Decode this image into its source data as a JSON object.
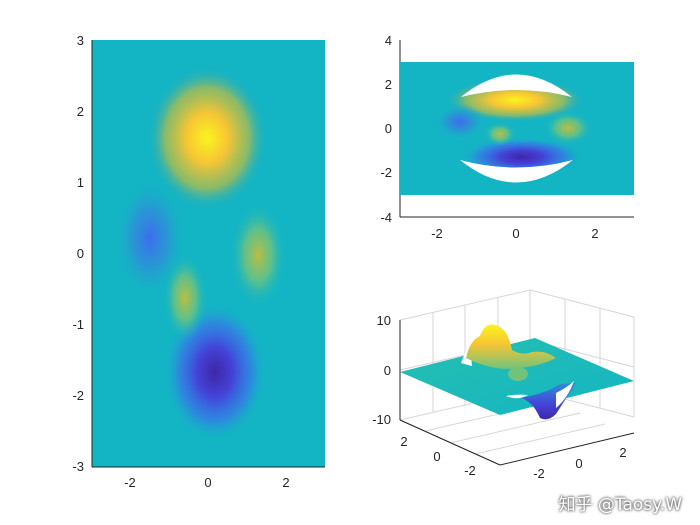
{
  "figure": {
    "watermark": "知乎 @Taosy.W"
  },
  "colormap": [
    "#3e26a8",
    "#4443d8",
    "#3e6cf0",
    "#2f8ed8",
    "#1ca5c8",
    "#13b5c4",
    "#26bfaf",
    "#71c37c",
    "#bcbd42",
    "#f6c534",
    "#faf41d"
  ],
  "chart_data": [
    {
      "type": "heatmap",
      "view": "2D top view (surface)",
      "title": "",
      "xlabel": "",
      "ylabel": "",
      "xlim": [
        -3,
        3
      ],
      "ylim": [
        -3,
        3
      ],
      "xticks": [
        "-2",
        "0",
        "2"
      ],
      "yticks": [
        "3",
        "2",
        "1",
        "0",
        "-1",
        "-2",
        "-3"
      ],
      "value_range": [
        -8,
        8
      ],
      "features": [
        {
          "label": "peak",
          "x": 0.0,
          "y": 1.6,
          "value": 8.1
        },
        {
          "label": "trough",
          "x": 0.2,
          "y": -1.6,
          "value": -6.5
        },
        {
          "label": "trough",
          "x": -1.4,
          "y": 0.2,
          "value": -3.0
        },
        {
          "label": "peak",
          "x": 1.3,
          "y": 0.0,
          "value": 3.6
        },
        {
          "label": "peak",
          "x": -0.4,
          "y": -0.6,
          "value": 2.9
        }
      ]
    },
    {
      "type": "heatmap",
      "view": "2D top view, clipped",
      "title": "",
      "xlabel": "",
      "ylabel": "",
      "xlim": [
        -3,
        3
      ],
      "ylim": [
        -4,
        4
      ],
      "data_extent_y": [
        -3,
        3
      ],
      "xticks": [
        "-2",
        "0",
        "2"
      ],
      "yticks": [
        "4",
        "2",
        "0",
        "-2",
        "-4"
      ],
      "note": "regions with |z| above threshold removed (white holes)"
    },
    {
      "type": "surface",
      "view": "3D surface, clipped",
      "title": "",
      "xlabel": "",
      "ylabel": "",
      "zlim": [
        -10,
        10
      ],
      "xticks": [
        "-2",
        "0",
        "2"
      ],
      "yticks": [
        "2",
        "0",
        "-2"
      ],
      "zticks": [
        "10",
        "0",
        "-10"
      ]
    }
  ]
}
